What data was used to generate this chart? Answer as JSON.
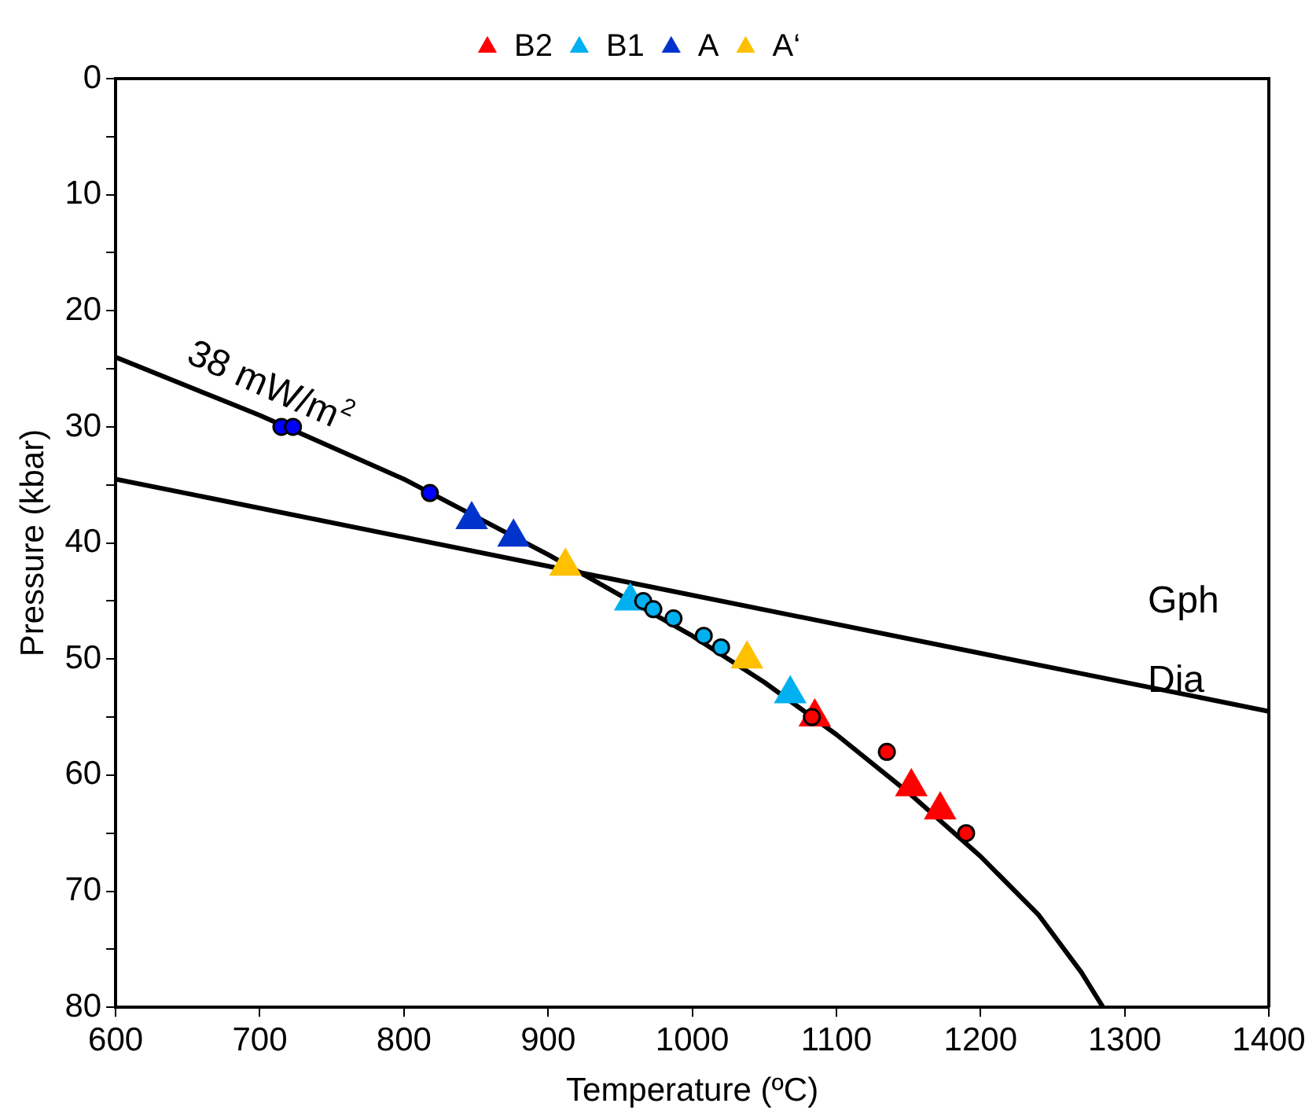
{
  "chart_data": {
    "type": "scatter",
    "xlabel": "Temperature (ºC)",
    "ylabel": "Pressure (kbar)",
    "xlim": [
      600,
      1400
    ],
    "xticks": [
      600,
      700,
      800,
      900,
      1000,
      1100,
      1200,
      1300,
      1400
    ],
    "ylim": [
      80,
      0
    ],
    "yticks": [
      0,
      {
        "value": 5,
        "label": null
      },
      10,
      {
        "value": 15,
        "label": null
      },
      20,
      {
        "value": 25,
        "label": null
      },
      30,
      {
        "value": 35,
        "label": null
      },
      40,
      {
        "value": 45,
        "label": null
      },
      50,
      {
        "value": 55,
        "label": null
      },
      60,
      {
        "value": 65,
        "label": null
      },
      70,
      {
        "value": 75,
        "label": null
      },
      80
    ],
    "grid": false,
    "legend": "top",
    "marker": "triangle",
    "series": [
      {
        "type": "line",
        "marker": "none",
        "line_style": "solid",
        "color": "#000000",
        "x": [
          600,
          700,
          800,
          900,
          950,
          1000,
          1050,
          1100,
          1150,
          1200,
          1240,
          1270,
          1285
        ],
        "values": [
          24,
          29,
          34.5,
          41,
          44.5,
          48,
          52,
          56.5,
          61.5,
          67,
          72,
          77,
          80
        ]
      },
      {
        "type": "line",
        "marker": "none",
        "line_style": "solid",
        "color": "#000000",
        "x": [
          600,
          1400
        ],
        "values": [
          34.5,
          54.5
        ]
      },
      {
        "marker": "circle",
        "color": "#0000ff",
        "x": [
          715,
          723,
          818
        ],
        "values": [
          30,
          30,
          35.7
        ]
      },
      {
        "marker": "circle",
        "color": "#00b0f0",
        "x": [
          966,
          973,
          987,
          1008,
          1020
        ],
        "values": [
          45,
          45.7,
          46.5,
          48,
          49
        ]
      },
      {
        "marker": "circle",
        "color": "#ff0000",
        "x": [
          1083,
          1135,
          1190
        ],
        "values": [
          55,
          58,
          65
        ]
      },
      {
        "name": "B2",
        "color": "#ff0000",
        "x": [
          1085,
          1152,
          1172
        ],
        "values": [
          55,
          61,
          63
        ]
      },
      {
        "name": "B1",
        "color": "#00b0f0",
        "x": [
          957,
          1068
        ],
        "values": [
          45,
          53
        ]
      },
      {
        "name": "A",
        "color": "#0033cc",
        "x": [
          847,
          876
        ],
        "values": [
          38,
          39.5
        ]
      },
      {
        "name": "A‘",
        "color": "#ffc000",
        "x": [
          912,
          1038
        ],
        "values": [
          42,
          50
        ]
      }
    ],
    "annotations": [
      "38 mW/m$^{2}$",
      "Gph",
      "Dia"
    ]
  }
}
